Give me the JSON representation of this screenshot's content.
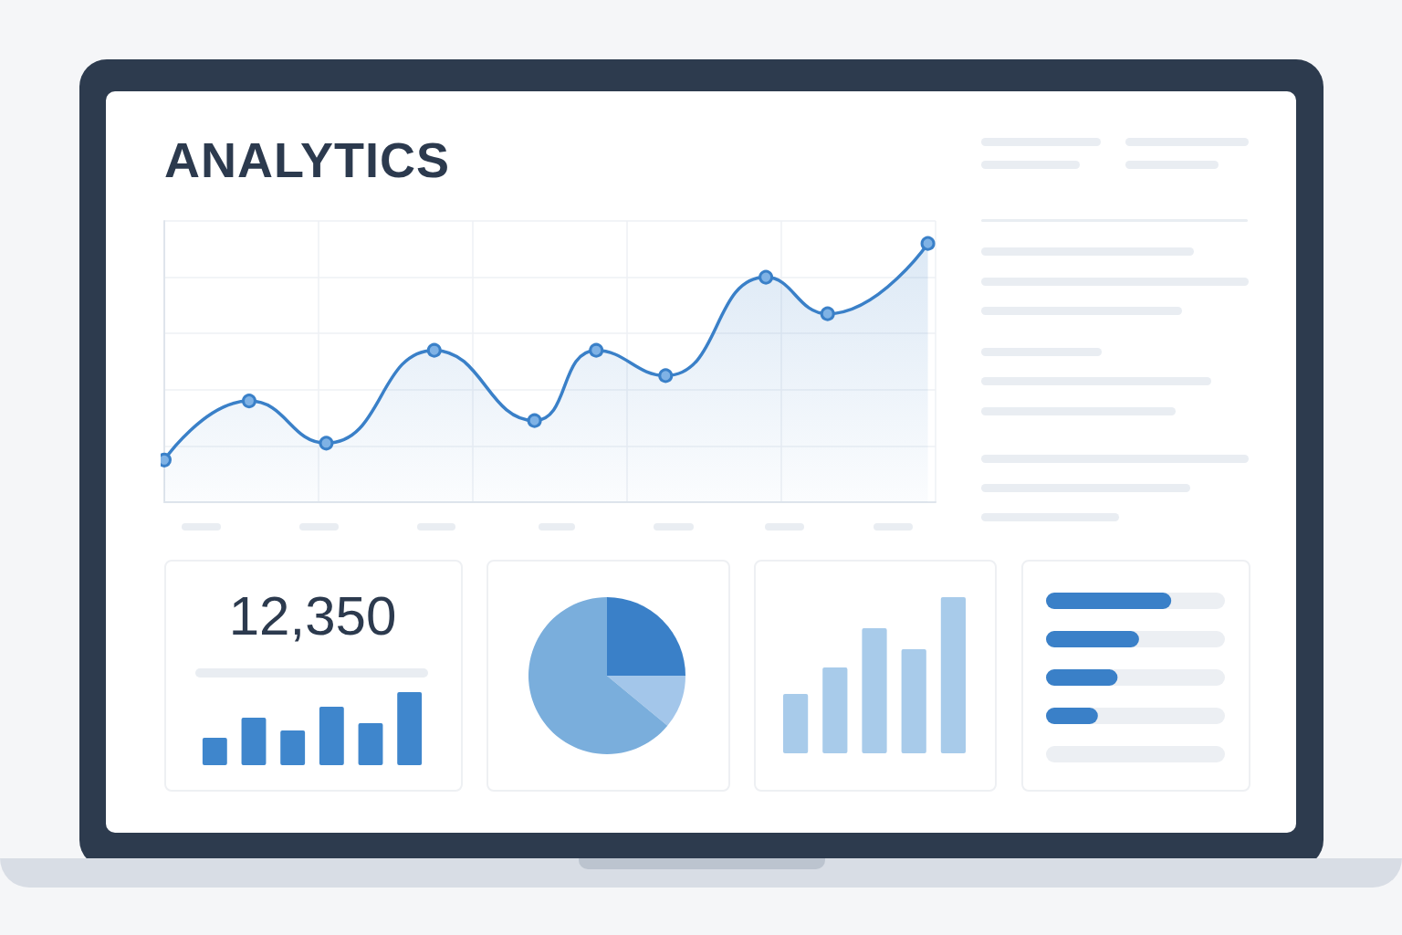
{
  "title": "ANALYTICS",
  "kpi": {
    "value": "12,350"
  },
  "chart_data": [
    {
      "type": "line",
      "x": [
        0,
        11,
        21,
        35,
        48,
        56,
        65,
        78,
        86,
        99
      ],
      "values": [
        15,
        36,
        21,
        54,
        29,
        54,
        45,
        80,
        67,
        92
      ],
      "xlim": [
        0,
        100
      ],
      "xticks": [
        0,
        20,
        40,
        60,
        80,
        100
      ],
      "ylim": [
        0,
        100
      ],
      "yticks": [
        0,
        20,
        40,
        60,
        80,
        100
      ],
      "grid": true,
      "tick_labels": false,
      "color": "#3a80c8",
      "marker": "circle",
      "line_style": "solid"
    },
    {
      "type": "bar",
      "values": [
        30,
        52,
        38,
        64,
        46,
        80
      ],
      "ylim": [
        0,
        80
      ],
      "yticks": [
        0,
        80
      ],
      "grid": false,
      "tick_labels": false,
      "color": "#3f86cc"
    },
    {
      "type": "pie",
      "values": [
        25,
        11,
        64
      ],
      "colors": [
        "#3a80c8",
        "#a3c6ea",
        "#7aaedc"
      ]
    },
    {
      "type": "bar",
      "values": [
        65,
        94,
        137,
        114,
        171
      ],
      "ylim": [
        0,
        180
      ],
      "yticks": [
        0,
        180
      ],
      "grid": false,
      "tick_labels": false,
      "color": "#a8cbea"
    },
    {
      "type": "bar",
      "orientation": "horizontal",
      "values": [
        70,
        52,
        40,
        29,
        0
      ],
      "xlim": [
        0,
        100
      ],
      "xticks": [
        0,
        100
      ],
      "grid": false,
      "tick_labels": false,
      "color": "#3a80c8"
    }
  ]
}
